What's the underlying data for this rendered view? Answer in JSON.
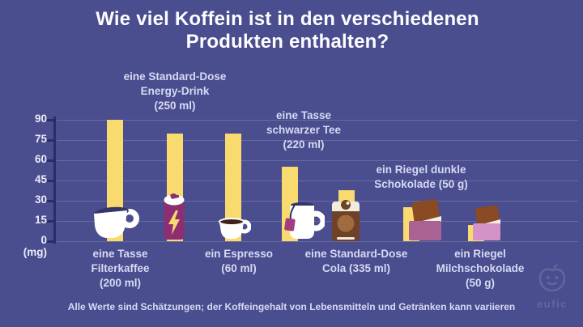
{
  "title": "Wie viel Koffein ist in den verschiedenen Produkten enthalten?",
  "footer": "Alle Werte sind Schätzungen; der Koffeingehalt von Lebensmitteln und Getränken kann variieren",
  "axis": {
    "unit": "(mg)",
    "ticks": [
      0,
      15,
      30,
      45,
      60,
      75,
      90
    ]
  },
  "brand": {
    "name": "eufic"
  },
  "colors": {
    "background": "#4a4d8e",
    "bar": "#f8da6f",
    "title_text": "#fdfdff",
    "label_text": "#d7daf4",
    "axis": "#2b2d66",
    "energy_can": "#8e2e72",
    "cola_can": "#6f4126",
    "dark_choc_wrapper": "#aa6295",
    "milk_choc_wrapper": "#d493c6"
  },
  "products": [
    {
      "name": "filterkaffee",
      "icon": "coffee-cup-icon",
      "value_mg": 90,
      "label_lines": [
        "eine Tasse",
        "Filterkaffee",
        "(200 ml)"
      ],
      "label_position": "below"
    },
    {
      "name": "energy-drink",
      "icon": "energy-drink-can-icon",
      "value_mg": 80,
      "label_lines": [
        "eine Standard-Dose",
        "Energy-Drink",
        "(250 ml)"
      ],
      "label_position": "above"
    },
    {
      "name": "espresso",
      "icon": "espresso-cup-icon",
      "value_mg": 80,
      "label_lines": [
        "ein Espresso",
        "(60 ml)"
      ],
      "label_position": "below"
    },
    {
      "name": "schwarzer-tee",
      "icon": "tea-mug-icon",
      "value_mg": 55,
      "label_lines": [
        "eine Tasse",
        "schwarzer Tee",
        "(220 ml)"
      ],
      "label_position": "above"
    },
    {
      "name": "cola",
      "icon": "cola-can-icon",
      "value_mg": 38,
      "label_lines": [
        "eine Standard-Dose",
        "Cola (335 ml)"
      ],
      "label_position": "below"
    },
    {
      "name": "dunkle-schokolade",
      "icon": "dark-chocolate-bar-icon",
      "value_mg": 25,
      "label_lines": [
        "ein Riegel dunkle",
        "Schokolade (50 g)"
      ],
      "label_position": "above"
    },
    {
      "name": "milchschokolade",
      "icon": "milk-chocolate-bar-icon",
      "value_mg": 12,
      "label_lines": [
        "ein Riegel",
        "Milchschokolade",
        "(50 g)"
      ],
      "label_position": "below"
    }
  ],
  "chart_data": {
    "type": "bar",
    "title": "Wie viel Koffein ist in den verschiedenen Produkten enthalten?",
    "categories": [
      "eine Tasse Filterkaffee (200 ml)",
      "eine Standard-Dose Energy-Drink (250 ml)",
      "ein Espresso (60 ml)",
      "eine Tasse schwarzer Tee (220 ml)",
      "eine Standard-Dose Cola (335 ml)",
      "ein Riegel dunkle Schokolade (50 g)",
      "ein Riegel Milchschokolade (50 g)"
    ],
    "values": [
      90,
      80,
      80,
      55,
      38,
      25,
      12
    ],
    "xlabel": "",
    "ylabel": "(mg)",
    "yticks": [
      0,
      15,
      30,
      45,
      60,
      75,
      90
    ],
    "ylim": [
      0,
      92
    ],
    "grid": true,
    "legend": "none",
    "bar_color": "#f8da6f",
    "footnote": "Alle Werte sind Schätzungen; der Koffeingehalt von Lebensmitteln und Getränken kann variieren"
  }
}
